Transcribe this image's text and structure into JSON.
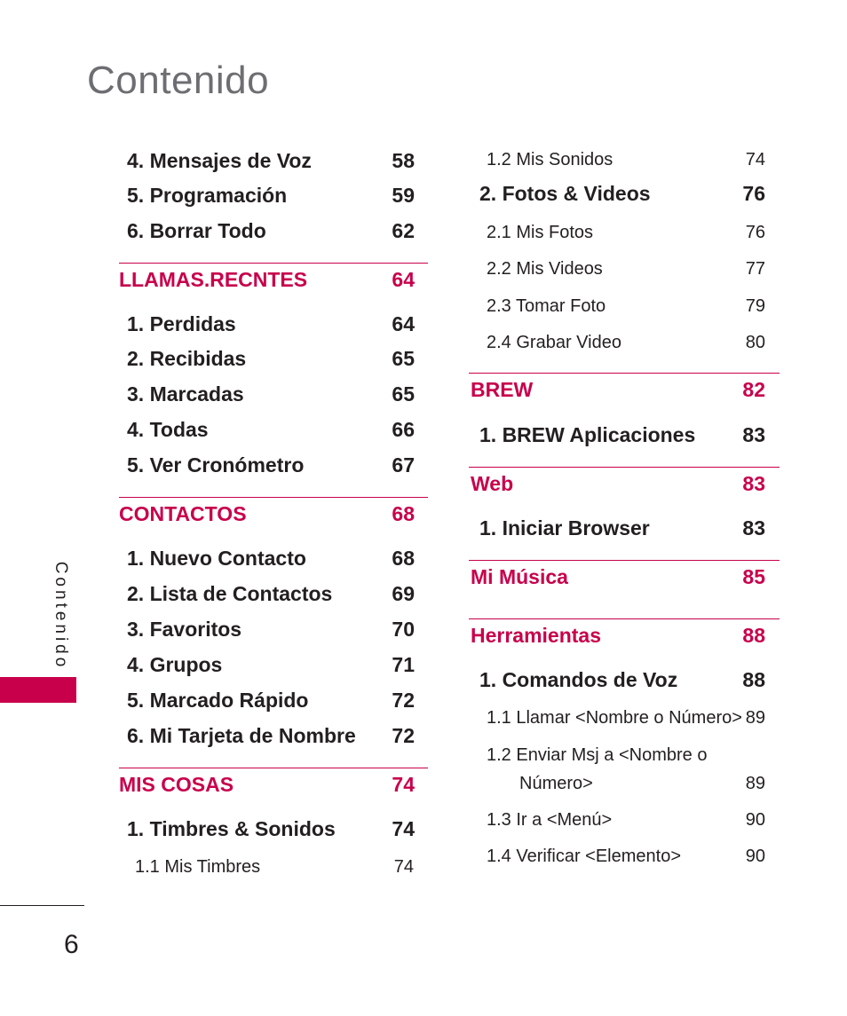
{
  "header": {
    "title": "Contenido"
  },
  "side": {
    "label": "Contenido"
  },
  "footer": {
    "page_number": "6"
  },
  "left_column": [
    {
      "type": "item",
      "label": "4. Mensajes de Voz",
      "page": "58"
    },
    {
      "type": "item",
      "label": "5. Programación",
      "page": "59"
    },
    {
      "type": "item",
      "label": "6. Borrar Todo",
      "page": "62"
    },
    {
      "type": "heading",
      "label": "LLAMAS.RECNTES",
      "page": "64"
    },
    {
      "type": "item",
      "label": "1. Perdidas",
      "page": "64"
    },
    {
      "type": "item",
      "label": "2. Recibidas",
      "page": "65"
    },
    {
      "type": "item",
      "label": "3. Marcadas",
      "page": "65"
    },
    {
      "type": "item",
      "label": "4. Todas",
      "page": "66"
    },
    {
      "type": "item",
      "label": "5. Ver Cronómetro",
      "page": "67"
    },
    {
      "type": "heading",
      "label": "CONTACTOS",
      "page": "68"
    },
    {
      "type": "item",
      "label": "1. Nuevo Contacto",
      "page": "68"
    },
    {
      "type": "item",
      "label": "2. Lista de Contactos",
      "page": "69"
    },
    {
      "type": "item",
      "label": "3. Favoritos",
      "page": "70"
    },
    {
      "type": "item",
      "label": "4. Grupos",
      "page": "71"
    },
    {
      "type": "item",
      "label": "5. Marcado Rápido",
      "page": "72"
    },
    {
      "type": "item",
      "label": "6. Mi Tarjeta de Nombre",
      "page": "72"
    },
    {
      "type": "heading",
      "label": "MIS COSAS",
      "page": "74"
    },
    {
      "type": "item",
      "label": "1. Timbres & Sonidos",
      "page": "74"
    },
    {
      "type": "sub",
      "label": "1.1 Mis Timbres",
      "page": "74"
    }
  ],
  "right_column": [
    {
      "type": "sub",
      "label": "1.2 Mis Sonidos",
      "page": "74"
    },
    {
      "type": "item",
      "label": "2. Fotos & Videos",
      "page": "76"
    },
    {
      "type": "sub",
      "label": "2.1 Mis Fotos",
      "page": "76"
    },
    {
      "type": "sub",
      "label": "2.2 Mis Videos",
      "page": "77"
    },
    {
      "type": "sub",
      "label": "2.3 Tomar Foto",
      "page": "79"
    },
    {
      "type": "sub",
      "label": "2.4 Grabar Video",
      "page": "80"
    },
    {
      "type": "heading",
      "label": "BREW",
      "page": "82"
    },
    {
      "type": "item",
      "label": "1. BREW Aplicaciones",
      "page": "83"
    },
    {
      "type": "heading",
      "label": "Web",
      "page": "83"
    },
    {
      "type": "item",
      "label": "1. Iniciar Browser",
      "page": "83"
    },
    {
      "type": "heading",
      "label": "Mi Música",
      "page": "85"
    },
    {
      "type": "heading",
      "label": "Herramientas",
      "page": "88"
    },
    {
      "type": "item",
      "label": "1. Comandos de Voz",
      "page": "88"
    },
    {
      "type": "sub",
      "label": "1.1 Llamar <Nombre o Número>",
      "page": "89"
    },
    {
      "type": "sub2",
      "label": "1.2 Enviar Msj a <Nombre o",
      "label_cont": "Número>",
      "page": "89"
    },
    {
      "type": "sub",
      "label": "1.3 Ir a <Menú>",
      "page": "90"
    },
    {
      "type": "sub",
      "label": "1.4 Verificar <Elemento>",
      "page": "90"
    }
  ],
  "colors": {
    "accent": "#c8004b",
    "text": "#231f20",
    "title": "#6d6e71"
  }
}
